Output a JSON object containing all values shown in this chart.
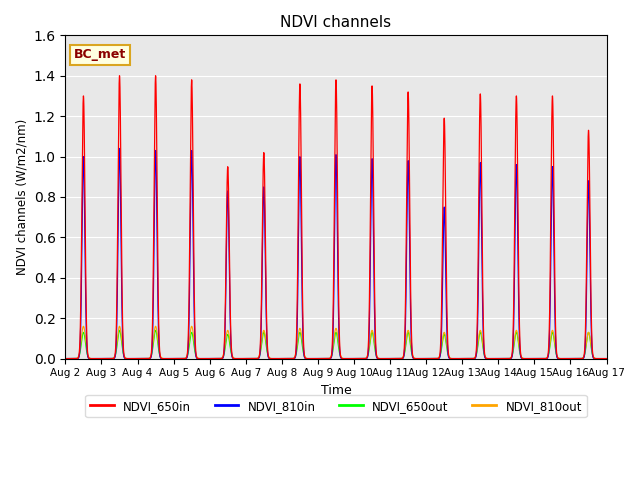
{
  "title": "NDVI channels",
  "xlabel": "Time",
  "ylabel": "NDVI channels (W/m2/nm)",
  "ylim": [
    0,
    1.6
  ],
  "annotation": "BC_met",
  "legend_labels": [
    "NDVI_650in",
    "NDVI_810in",
    "NDVI_650out",
    "NDVI_810out"
  ],
  "line_colors": [
    "red",
    "blue",
    "lime",
    "orange"
  ],
  "background_color": "#e8e8e8",
  "peak_values_650in": [
    1.3,
    1.4,
    1.4,
    1.38,
    0.95,
    1.02,
    1.36,
    1.38,
    1.35,
    1.32,
    1.19,
    1.31,
    1.3,
    1.3,
    1.13
  ],
  "peak_values_810in": [
    1.0,
    1.04,
    1.03,
    1.03,
    0.83,
    0.85,
    1.0,
    1.01,
    0.99,
    0.98,
    0.75,
    0.97,
    0.96,
    0.95,
    0.88
  ],
  "peak_values_650out": [
    0.13,
    0.14,
    0.14,
    0.13,
    0.12,
    0.13,
    0.13,
    0.13,
    0.13,
    0.13,
    0.12,
    0.13,
    0.13,
    0.13,
    0.13
  ],
  "peak_values_810out": [
    0.16,
    0.16,
    0.16,
    0.16,
    0.14,
    0.14,
    0.15,
    0.15,
    0.14,
    0.14,
    0.13,
    0.14,
    0.14,
    0.14,
    0.13
  ],
  "xtick_labels": [
    "Aug 2",
    "Aug 3",
    "Aug 4",
    "Aug 5",
    "Aug 6",
    "Aug 7",
    "Aug 8",
    "Aug 9",
    "Aug 10",
    "Aug 11",
    "Aug 12",
    "Aug 13",
    "Aug 14",
    "Aug 15",
    "Aug 16",
    "Aug 17"
  ],
  "xtick_positions": [
    2,
    3,
    4,
    5,
    6,
    7,
    8,
    9,
    10,
    11,
    12,
    13,
    14,
    15,
    16,
    17
  ],
  "figsize": [
    6.4,
    4.8
  ],
  "dpi": 100
}
